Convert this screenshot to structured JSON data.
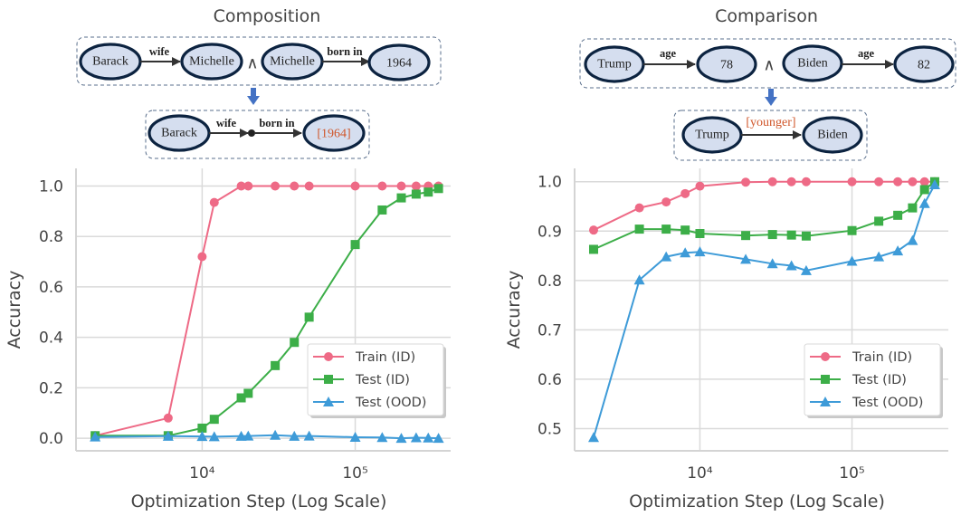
{
  "diagrams": {
    "composition": {
      "title": "Composition",
      "premise": {
        "fact1": {
          "head": "Barack",
          "relation": "wife",
          "tail": "Michelle"
        },
        "conjunction": "∧",
        "fact2": {
          "head": "Michelle",
          "relation": "born in",
          "tail": "1964"
        }
      },
      "inference": {
        "head": "Barack",
        "relation1": "wife",
        "relation2": "born in",
        "answer": "[1964]"
      }
    },
    "comparison": {
      "title": "Comparison",
      "premise": {
        "fact1": {
          "head": "Trump",
          "relation": "age",
          "tail": "78"
        },
        "conjunction": "∧",
        "fact2": {
          "head": "Biden",
          "relation": "age",
          "tail": "82"
        }
      },
      "inference": {
        "head": "Trump",
        "relation": "[younger]",
        "tail": "Biden"
      }
    },
    "colors": {
      "node_fill": "#d5deef",
      "node_stroke": "#0c2340",
      "answer": "#d0562a",
      "arrow": "#4472c4"
    }
  },
  "chart_data": [
    {
      "type": "line",
      "title": "Composition",
      "xlabel": "Optimization Step (Log Scale)",
      "ylabel": "Accuracy",
      "xscale": "log",
      "xlim": [
        1500,
        420000
      ],
      "ylim": [
        -0.05,
        1.07
      ],
      "xticks": [
        10000,
        100000
      ],
      "xtick_labels": [
        "10⁴",
        "10⁵"
      ],
      "yticks": [
        0.0,
        0.2,
        0.4,
        0.6,
        0.8,
        1.0
      ],
      "ytick_labels": [
        "0.0",
        "0.2",
        "0.4",
        "0.6",
        "0.8",
        "1.0"
      ],
      "grid": true,
      "legend": "lower-right",
      "x": [
        2000,
        6000,
        10000,
        12000,
        18000,
        20000,
        30000,
        40000,
        50000,
        100000,
        150000,
        200000,
        250000,
        300000,
        350000
      ],
      "series": [
        {
          "name": "Train (ID)",
          "color": "#ee6a86",
          "marker": "circle",
          "values": [
            0.01,
            0.08,
            0.72,
            0.935,
            1.0,
            1.0,
            1.0,
            1.0,
            1.0,
            1.0,
            1.0,
            1.0,
            1.0,
            1.0,
            1.0
          ]
        },
        {
          "name": "Test (ID)",
          "color": "#3cae48",
          "marker": "square",
          "values": [
            0.01,
            0.01,
            0.04,
            0.075,
            0.16,
            0.178,
            0.288,
            0.38,
            0.48,
            0.768,
            0.905,
            0.953,
            0.968,
            0.976,
            0.99
          ]
        },
        {
          "name": "Test (OOD)",
          "color": "#3e9bd8",
          "marker": "triangle",
          "values": [
            0.005,
            0.008,
            0.007,
            0.006,
            0.008,
            0.009,
            0.012,
            0.008,
            0.009,
            0.004,
            0.003,
            0.0,
            0.002,
            0.001,
            0.0
          ]
        }
      ]
    },
    {
      "type": "line",
      "title": "Comparison",
      "xlabel": "Optimization Step (Log Scale)",
      "ylabel": "Accuracy",
      "xscale": "log",
      "xlim": [
        1500,
        430000
      ],
      "ylim": [
        0.455,
        1.027
      ],
      "xticks": [
        10000,
        100000
      ],
      "xtick_labels": [
        "10⁴",
        "10⁵"
      ],
      "yticks": [
        0.5,
        0.6,
        0.7,
        0.8,
        0.9,
        1.0
      ],
      "ytick_labels": [
        "0.5",
        "0.6",
        "0.7",
        "0.8",
        "0.9",
        "1.0"
      ],
      "grid": true,
      "legend": "lower-right",
      "x": [
        2000,
        4000,
        6000,
        8000,
        10000,
        20000,
        30000,
        40000,
        50000,
        100000,
        150000,
        200000,
        250000,
        300000,
        350000
      ],
      "series": [
        {
          "name": "Train (ID)",
          "color": "#ee6a86",
          "marker": "circle",
          "values": [
            0.902,
            0.947,
            0.959,
            0.976,
            0.991,
            0.999,
            1.0,
            1.0,
            1.0,
            1.0,
            1.0,
            1.0,
            1.0,
            1.0,
            1.0
          ]
        },
        {
          "name": "Test (ID)",
          "color": "#3cae48",
          "marker": "square",
          "values": [
            0.863,
            0.904,
            0.904,
            0.902,
            0.895,
            0.891,
            0.893,
            0.892,
            0.89,
            0.901,
            0.92,
            0.932,
            0.947,
            0.984,
            1.0
          ]
        },
        {
          "name": "Test (OOD)",
          "color": "#3e9bd8",
          "marker": "triangle",
          "values": [
            0.482,
            0.801,
            0.848,
            0.856,
            0.858,
            0.843,
            0.834,
            0.83,
            0.82,
            0.839,
            0.848,
            0.86,
            0.881,
            0.956,
            0.994
          ]
        }
      ]
    }
  ]
}
